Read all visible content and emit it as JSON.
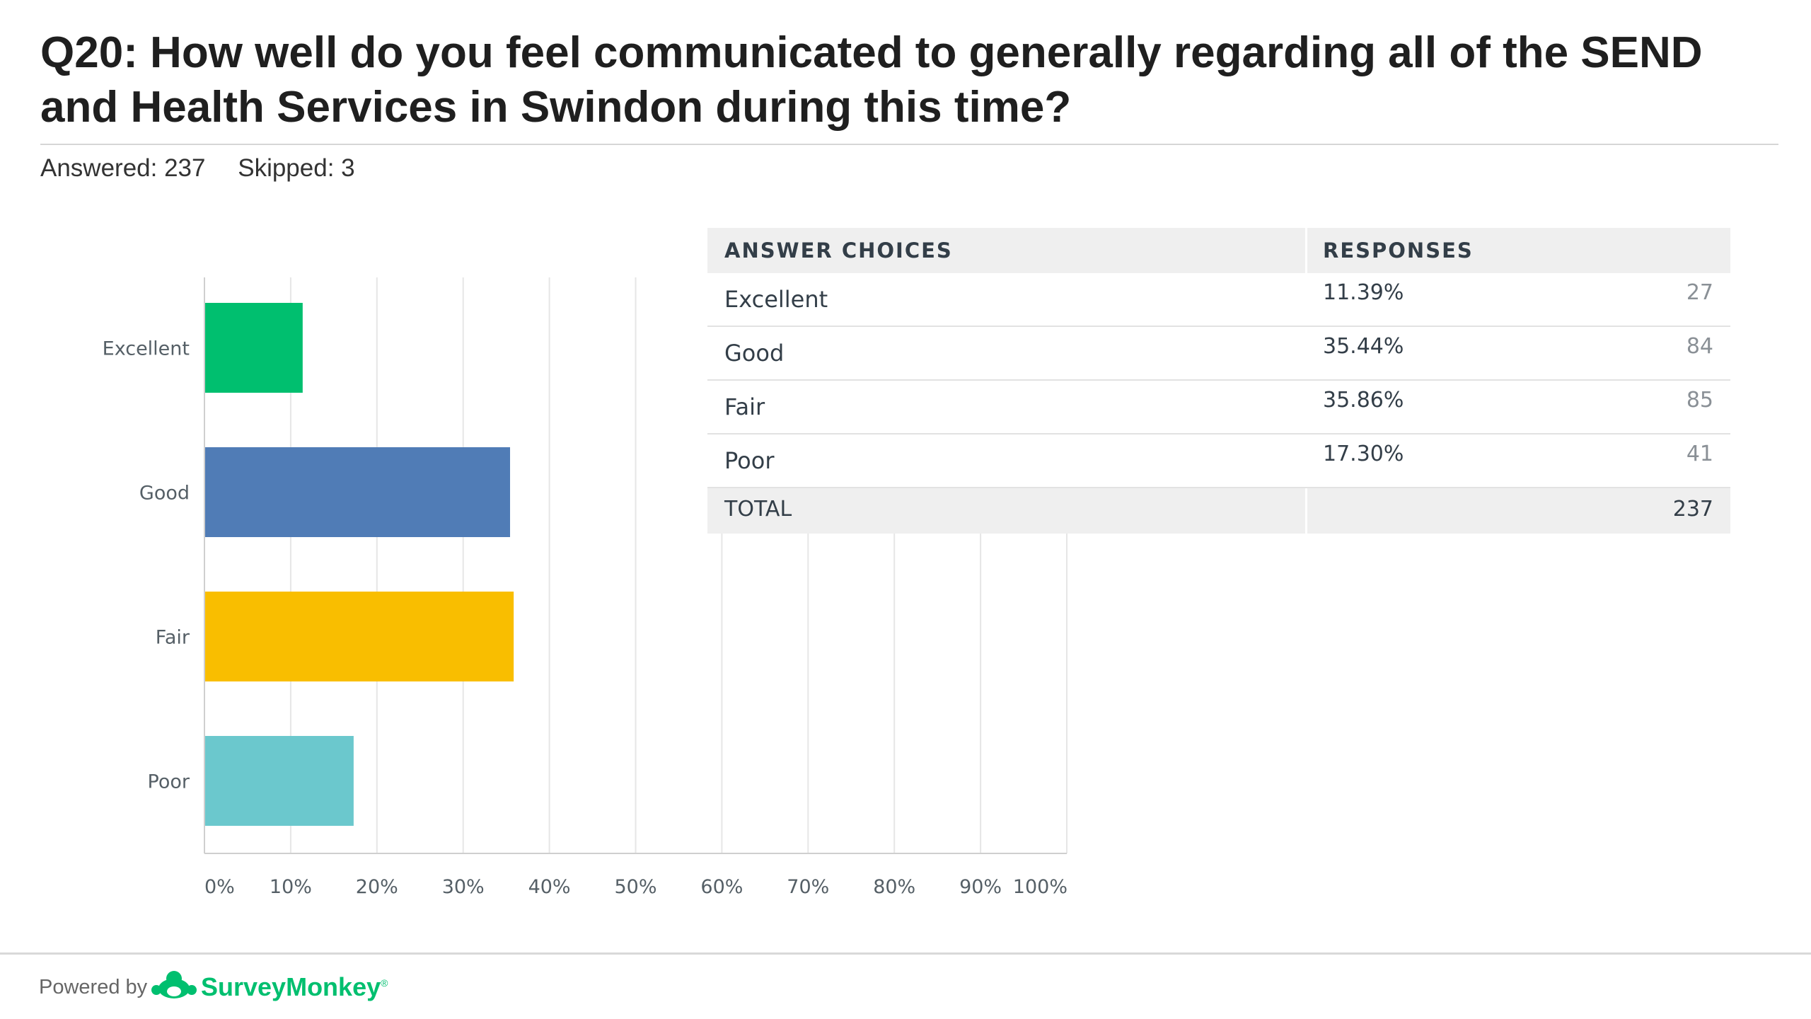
{
  "question": {
    "title": "Q20: How well do you feel communicated to generally regarding all of the SEND and Health Services in Swindon during this time?",
    "answered_label": "Answered: 237",
    "skipped_label": "Skipped: 3"
  },
  "chart_data": {
    "type": "bar",
    "orientation": "horizontal",
    "categories": [
      "Excellent",
      "Good",
      "Fair",
      "Poor"
    ],
    "values": [
      11.39,
      35.44,
      35.86,
      17.3
    ],
    "colors": [
      "#00bf6f",
      "#507cb6",
      "#f9be00",
      "#6bc8cd"
    ],
    "xlim": [
      0,
      100
    ],
    "x_ticks": [
      "0%",
      "10%",
      "20%",
      "30%",
      "40%",
      "50%",
      "60%",
      "70%",
      "80%",
      "90%",
      "100%"
    ],
    "grid": true
  },
  "table": {
    "header_choices": "ANSWER CHOICES",
    "header_responses": "RESPONSES",
    "rows": [
      {
        "choice": "Excellent",
        "percent": "11.39%",
        "count": "27"
      },
      {
        "choice": "Good",
        "percent": "35.44%",
        "count": "84"
      },
      {
        "choice": "Fair",
        "percent": "35.86%",
        "count": "85"
      },
      {
        "choice": "Poor",
        "percent": "17.30%",
        "count": "41"
      }
    ],
    "total_label": "TOTAL",
    "total_count": "237"
  },
  "footer": {
    "powered_by": "Powered by",
    "brand": "SurveyMonkey",
    "brand_mark": "®",
    "brand_color": "#00bf6f"
  }
}
